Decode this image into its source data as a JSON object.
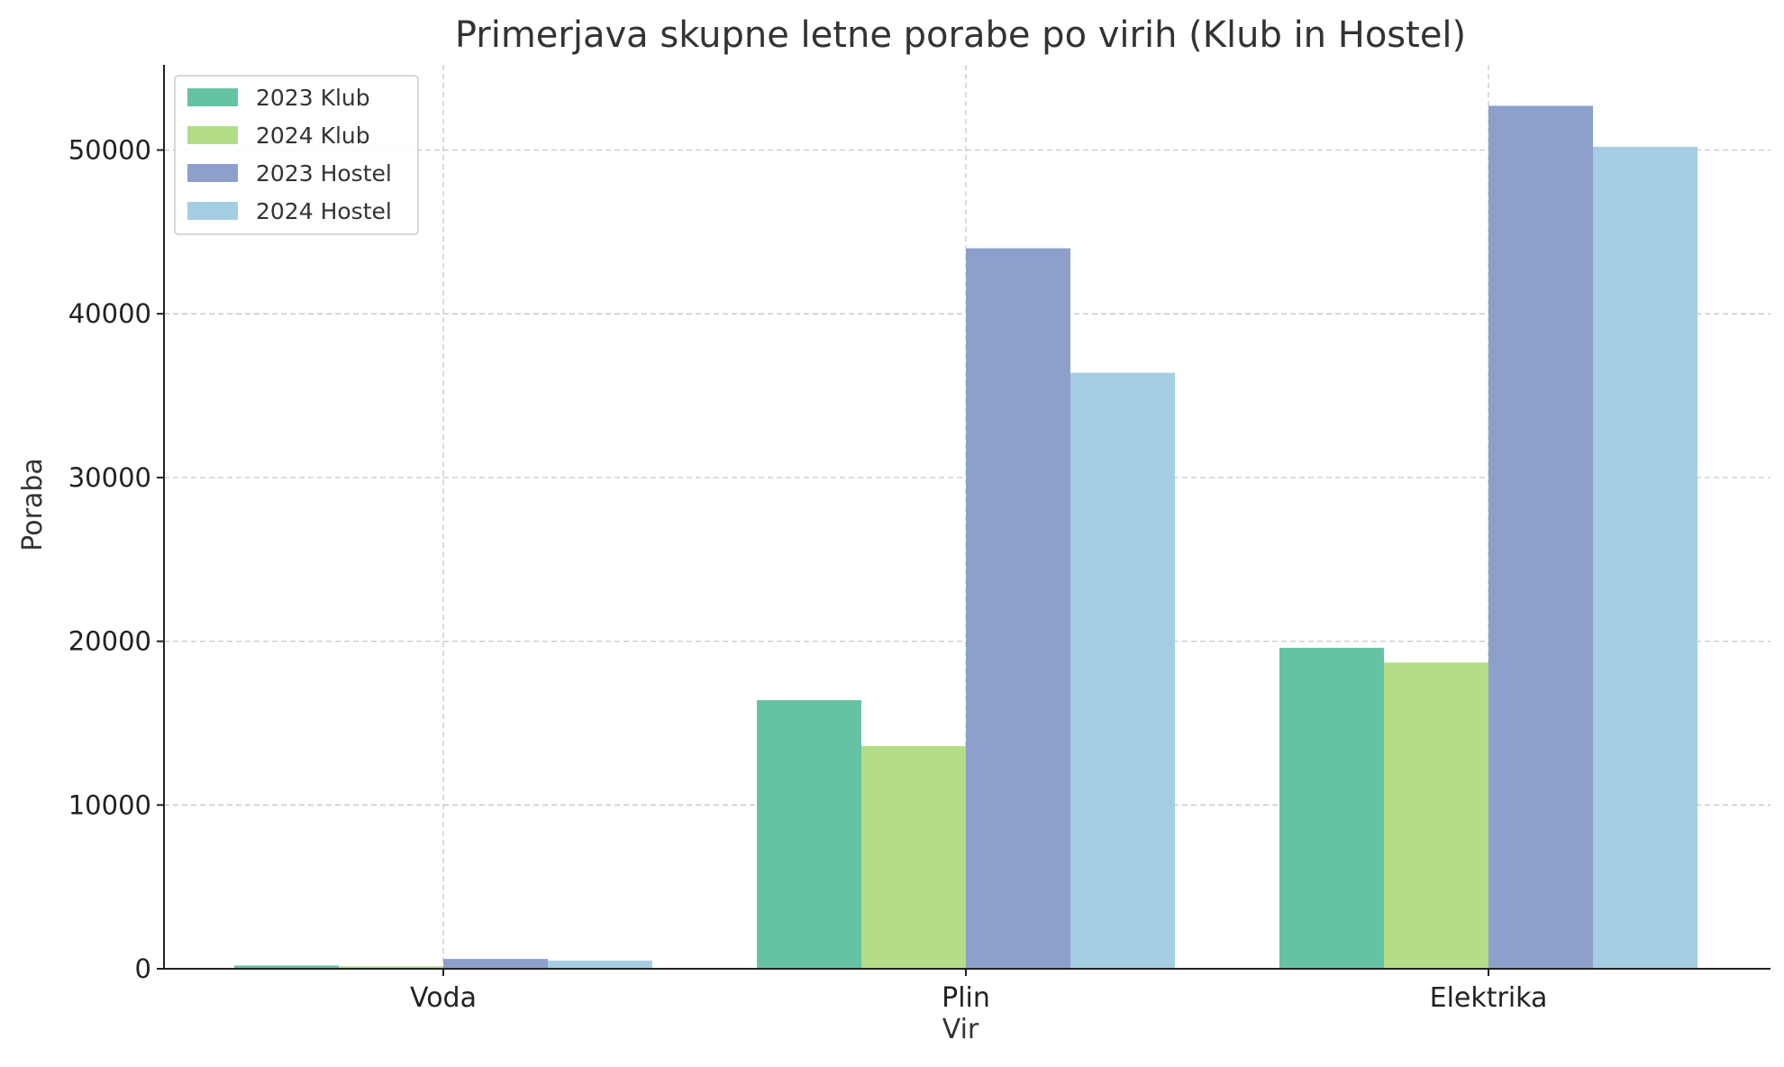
{
  "chart_data": {
    "type": "bar",
    "title": "Primerjava skupne letne porabe po virih (Klub in Hostel)",
    "xlabel": "Vir",
    "ylabel": "Poraba",
    "categories": [
      "Voda",
      "Plin",
      "Elektrika"
    ],
    "ylim": [
      0,
      55200
    ],
    "yticks": [
      0,
      10000,
      20000,
      30000,
      40000,
      50000
    ],
    "grid": true,
    "legend_position": "top-left",
    "series": [
      {
        "name": "2023 Klub",
        "color": "#66c2a5",
        "values": [
          200,
          16400,
          19600
        ]
      },
      {
        "name": "2024 Klub",
        "color": "#b3de87",
        "values": [
          150,
          13600,
          18700
        ]
      },
      {
        "name": "2023 Hostel",
        "color": "#8da0cb",
        "values": [
          600,
          44000,
          52700
        ]
      },
      {
        "name": "2024 Hostel",
        "color": "#a6cee3",
        "values": [
          500,
          36400,
          50200
        ]
      }
    ]
  }
}
